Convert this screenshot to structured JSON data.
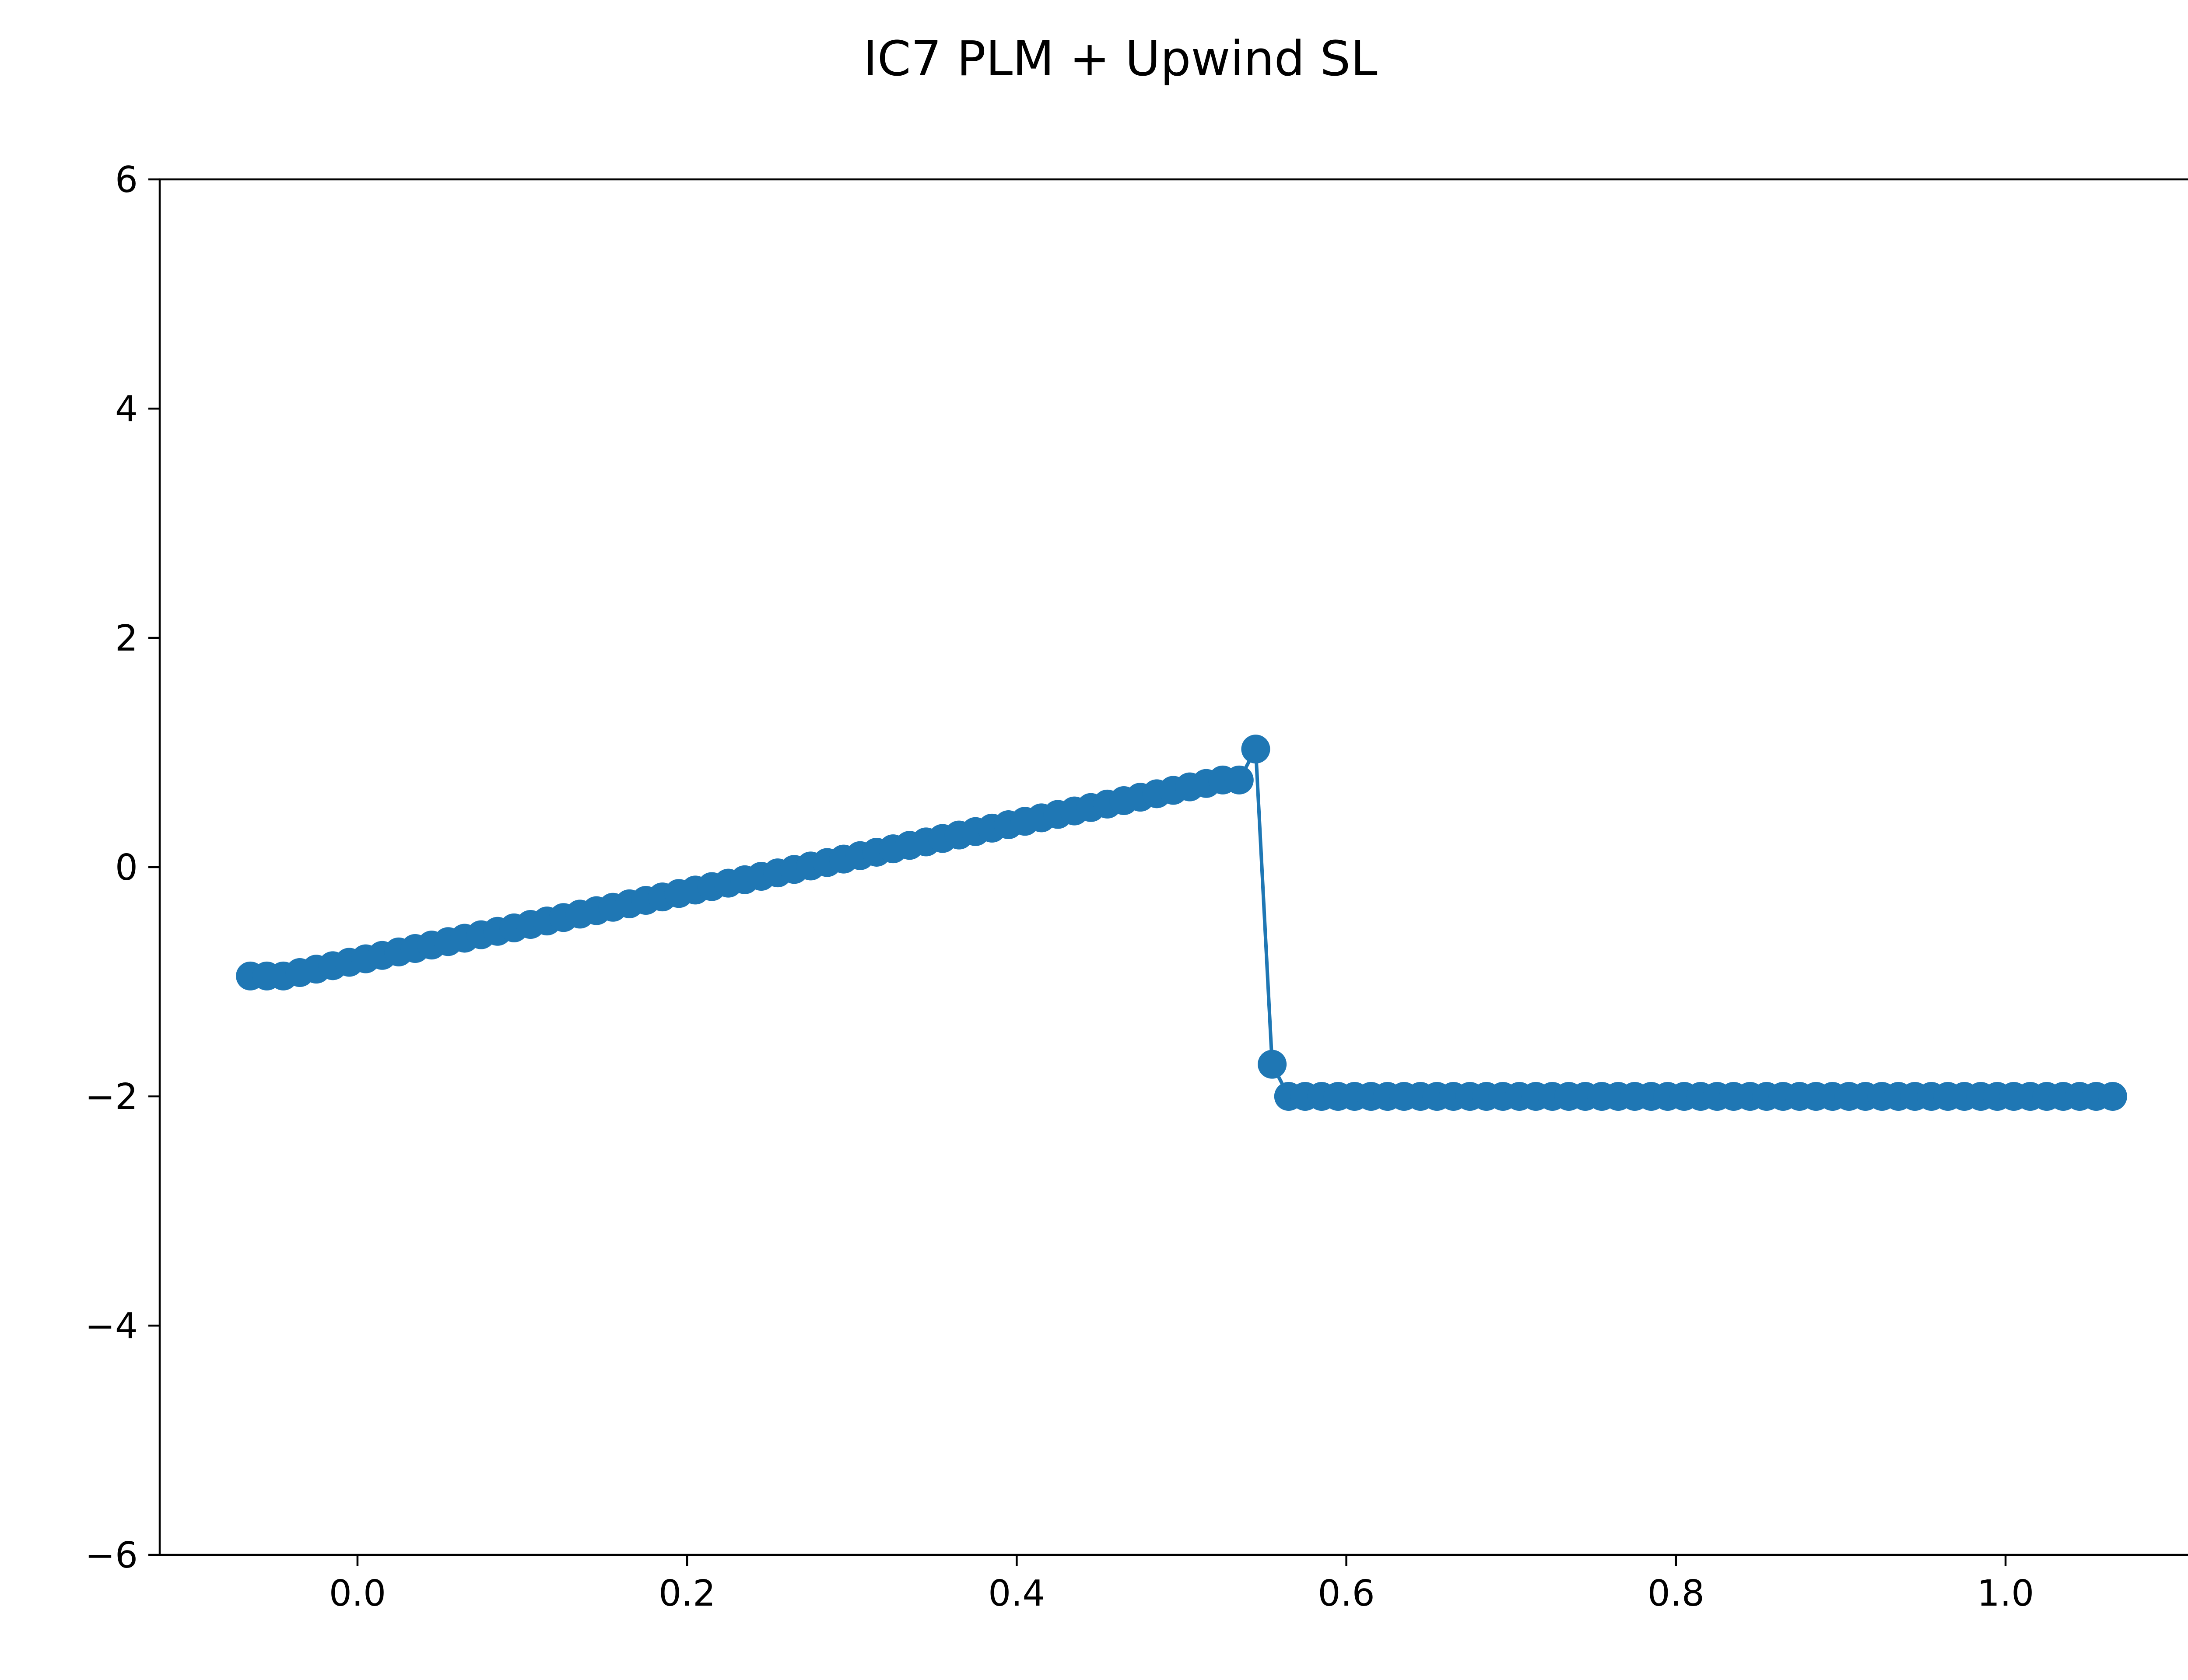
{
  "chart_data": {
    "type": "line",
    "title": "IC7 PLM + Upwind SL",
    "xlabel": "",
    "ylabel": "",
    "xlim": [
      -0.12,
      1.12
    ],
    "ylim": [
      -6,
      6
    ],
    "xticks": [
      0.0,
      0.2,
      0.4,
      0.6,
      0.8,
      1.0
    ],
    "xtick_labels": [
      "0.0",
      "0.2",
      "0.4",
      "0.6",
      "0.8",
      "1.0"
    ],
    "yticks": [
      -6,
      -4,
      -2,
      0,
      2,
      4,
      6
    ],
    "ytick_labels": [
      "−6",
      "−4",
      "−2",
      "0",
      "2",
      "4",
      "6"
    ],
    "grid": false,
    "colors": {
      "series": "#1f77b4"
    },
    "series": [
      {
        "marker": "circle",
        "x": [
          -0.065,
          -0.055,
          -0.045,
          -0.035,
          -0.025,
          -0.015,
          -0.005,
          0.005,
          0.015,
          0.025,
          0.035,
          0.045,
          0.055,
          0.065,
          0.075,
          0.085,
          0.095,
          0.105,
          0.115,
          0.125,
          0.135,
          0.145,
          0.155,
          0.165,
          0.175,
          0.185,
          0.195,
          0.205,
          0.215,
          0.225,
          0.235,
          0.245,
          0.255,
          0.265,
          0.275,
          0.285,
          0.295,
          0.305,
          0.315,
          0.325,
          0.335,
          0.345,
          0.355,
          0.365,
          0.375,
          0.385,
          0.395,
          0.405,
          0.415,
          0.425,
          0.435,
          0.445,
          0.455,
          0.465,
          0.475,
          0.485,
          0.495,
          0.505,
          0.515,
          0.525,
          0.535,
          0.545,
          0.555,
          0.565,
          0.575,
          0.585,
          0.595,
          0.605,
          0.615,
          0.625,
          0.635,
          0.645,
          0.655,
          0.665,
          0.675,
          0.685,
          0.695,
          0.705,
          0.715,
          0.725,
          0.735,
          0.745,
          0.755,
          0.765,
          0.775,
          0.785,
          0.795,
          0.805,
          0.815,
          0.825,
          0.835,
          0.845,
          0.855,
          0.865,
          0.875,
          0.885,
          0.895,
          0.905,
          0.915,
          0.925,
          0.935,
          0.945,
          0.955,
          0.965,
          0.975,
          0.985,
          0.995,
          1.005,
          1.015,
          1.025,
          1.035,
          1.045,
          1.055,
          1.065
        ],
        "y": [
          -0.95,
          -0.95,
          -0.95,
          -0.92,
          -0.89,
          -0.86,
          -0.83,
          -0.8,
          -0.77,
          -0.74,
          -0.71,
          -0.68,
          -0.65,
          -0.62,
          -0.59,
          -0.56,
          -0.53,
          -0.5,
          -0.47,
          -0.44,
          -0.41,
          -0.38,
          -0.35,
          -0.32,
          -0.29,
          -0.26,
          -0.23,
          -0.2,
          -0.17,
          -0.14,
          -0.11,
          -0.08,
          -0.05,
          -0.02,
          0.01,
          0.04,
          0.07,
          0.1,
          0.13,
          0.16,
          0.19,
          0.22,
          0.25,
          0.28,
          0.31,
          0.34,
          0.37,
          0.4,
          0.43,
          0.46,
          0.49,
          0.52,
          0.55,
          0.58,
          0.61,
          0.64,
          0.67,
          0.7,
          0.73,
          0.76,
          0.76,
          1.03,
          -1.72,
          -2.0,
          -2.0,
          -2.0,
          -2.0,
          -2.0,
          -2.0,
          -2.0,
          -2.0,
          -2.0,
          -2.0,
          -2.0,
          -2.0,
          -2.0,
          -2.0,
          -2.0,
          -2.0,
          -2.0,
          -2.0,
          -2.0,
          -2.0,
          -2.0,
          -2.0,
          -2.0,
          -2.0,
          -2.0,
          -2.0,
          -2.0,
          -2.0,
          -2.0,
          -2.0,
          -2.0,
          -2.0,
          -2.0,
          -2.0,
          -2.0,
          -2.0,
          -2.0,
          -2.0,
          -2.0,
          -2.0,
          -2.0,
          -2.0,
          -2.0,
          -2.0,
          -2.0,
          -2.0,
          -2.0,
          -2.0,
          -2.0,
          -2.0,
          -2.0
        ]
      }
    ]
  }
}
